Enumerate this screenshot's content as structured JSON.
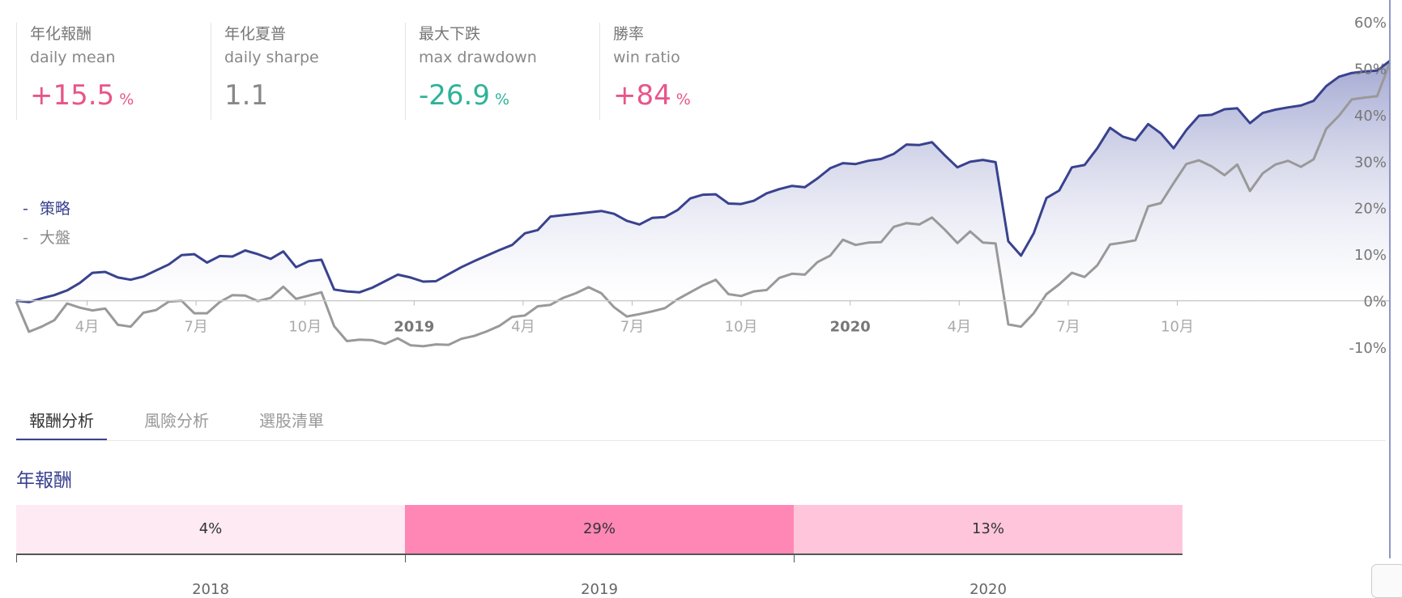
{
  "stats": [
    {
      "title": "年化報酬",
      "subtitle": "daily mean",
      "value": "+15.5",
      "unit": "%",
      "color": "#e8558a"
    },
    {
      "title": "年化夏普",
      "subtitle": "daily sharpe",
      "value": "1.1",
      "unit": "",
      "color": "#888888"
    },
    {
      "title": "最大下跌",
      "subtitle": "max drawdown",
      "value": "-26.9",
      "unit": "%",
      "color": "#2db39a"
    },
    {
      "title": "勝率",
      "subtitle": "win ratio",
      "value": "+84",
      "unit": "%",
      "color": "#e8558a"
    }
  ],
  "legend": [
    {
      "dash": "-",
      "label": "策略",
      "color": "#39428f"
    },
    {
      "dash": "-",
      "label": "大盤",
      "color": "#888888"
    }
  ],
  "chart_data": {
    "type": "line",
    "y_ticks": [
      60,
      50,
      40,
      30,
      20,
      10,
      0,
      -10
    ],
    "y_unit": "%",
    "ylim": [
      -10,
      60
    ],
    "x_ticks": [
      {
        "label": "4月",
        "bold": false
      },
      {
        "label": "7月",
        "bold": false
      },
      {
        "label": "10月",
        "bold": false
      },
      {
        "label": "2019",
        "bold": true
      },
      {
        "label": "4月",
        "bold": false
      },
      {
        "label": "7月",
        "bold": false
      },
      {
        "label": "10月",
        "bold": false
      },
      {
        "label": "2020",
        "bold": true
      },
      {
        "label": "4月",
        "bold": false
      },
      {
        "label": "7月",
        "bold": false
      },
      {
        "label": "10月",
        "bold": false
      }
    ],
    "series": [
      {
        "name": "策略",
        "color": "#39428f",
        "fill": true,
        "values": [
          0,
          -0.3,
          0.5,
          1.2,
          2.2,
          3.8,
          6,
          6.2,
          5,
          4.5,
          5.2,
          6.5,
          7.8,
          9.8,
          10,
          8.2,
          9.6,
          9.5,
          10.8,
          10,
          9,
          10.6,
          7.2,
          8.5,
          8.8,
          2.4,
          2,
          1.8,
          2.8,
          4.2,
          5.6,
          5,
          4.1,
          4.2,
          5.7,
          7.2,
          8.5,
          9.7,
          10.9,
          12,
          14.5,
          15.2,
          18.1,
          18.4,
          18.7,
          19,
          19.3,
          18.7,
          17.2,
          16.4,
          17.8,
          18,
          19.5,
          22,
          22.8,
          22.9,
          20.9,
          20.8,
          21.5,
          23.1,
          24,
          24.7,
          24.4,
          26.3,
          28.5,
          29.6,
          29.4,
          30.1,
          30.5,
          31.6,
          33.6,
          33.5,
          34.1,
          31.3,
          28.7,
          29.9,
          30.3,
          29.8,
          12.8,
          9.7,
          14.5,
          22.1,
          23.7,
          28.7,
          29.2,
          32.8,
          37.2,
          35.3,
          34.5,
          38,
          36,
          32.8,
          36.7,
          39.8,
          40,
          41.2,
          41.4,
          38.2,
          40.4,
          41.1,
          41.6,
          42,
          43,
          46.2,
          48.2,
          49,
          49.3,
          49.5,
          51.6
        ]
      },
      {
        "name": "大盤",
        "color": "#999999",
        "fill": false,
        "values": [
          -0.2,
          -6.7,
          -5.6,
          -4.2,
          -0.6,
          -1.5,
          -2.1,
          -1.7,
          -5.2,
          -5.6,
          -2.6,
          -2,
          -0.2,
          0,
          -2.7,
          -2.7,
          -0.3,
          1.2,
          1.1,
          -0.1,
          0.6,
          3,
          0.4,
          1.1,
          1.8,
          -5.5,
          -8.7,
          -8.4,
          -8.5,
          -9.3,
          -8.1,
          -9.6,
          -9.8,
          -9.4,
          -9.5,
          -8.2,
          -7.6,
          -6.6,
          -5.4,
          -3.5,
          -3.2,
          -1.2,
          -0.9,
          0.6,
          1.6,
          2.9,
          1.6,
          -1.4,
          -3.4,
          -2.9,
          -2.3,
          -1.6,
          0.3,
          1.8,
          3.3,
          4.5,
          1.4,
          1,
          2,
          2.3,
          4.9,
          5.8,
          5.6,
          8.3,
          9.7,
          13.1,
          12,
          12.5,
          12.6,
          15.9,
          16.7,
          16.4,
          17.9,
          15.3,
          12.4,
          14.9,
          12.5,
          12.3,
          -5.1,
          -5.6,
          -2.7,
          1.4,
          3.5,
          6,
          5.1,
          7.6,
          12.1,
          12.5,
          13,
          20.3,
          21,
          25.3,
          29.4,
          30.2,
          28.9,
          27,
          29.3,
          23.6,
          27.4,
          29.3,
          30.1,
          28.8,
          30.4,
          37,
          39.8,
          43.3,
          43.7,
          44,
          51.2
        ]
      }
    ]
  },
  "tabs": [
    {
      "label": "報酬分析",
      "active": true
    },
    {
      "label": "風險分析",
      "active": false
    },
    {
      "label": "選股清單",
      "active": false
    }
  ],
  "section_title": "年報酬",
  "annual": [
    {
      "year": "2018",
      "label": "4%",
      "value": 4,
      "color": "#fdeaf3"
    },
    {
      "year": "2019",
      "label": "29%",
      "value": 29,
      "color": "#ff87b5"
    },
    {
      "year": "2020",
      "label": "13%",
      "value": 13,
      "color": "#ffc6db"
    }
  ]
}
